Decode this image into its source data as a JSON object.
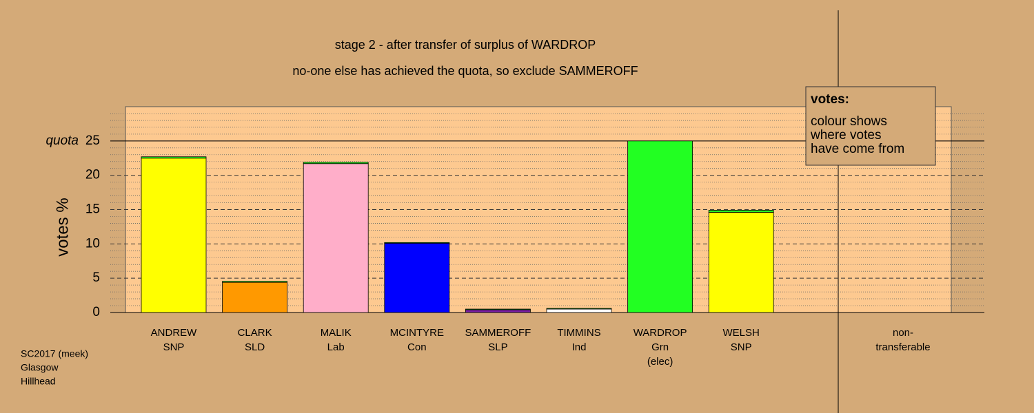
{
  "chart_data": {
    "type": "bar",
    "stacked": true,
    "title": "stage 2 - after transfer of surplus of WARDROP",
    "subtitle": "no-one else has achieved the quota, so exclude SAMMEROFF",
    "ylabel": "votes %",
    "categories": [
      [
        "ANDREW",
        "SNP"
      ],
      [
        "CLARK",
        "SLD"
      ],
      [
        "MALIK",
        "Lab"
      ],
      [
        "MCINTYRE",
        "Con"
      ],
      [
        "SAMMEROFF",
        "SLP"
      ],
      [
        "TIMMINS",
        "Ind"
      ],
      [
        "WARDROP",
        "Grn",
        "(elec)"
      ],
      [
        "WELSH",
        "SNP"
      ],
      [
        "non-",
        "transferable"
      ]
    ],
    "series": [
      {
        "colors": [
          "#ffff00",
          "#ff9900",
          "#ffaec9",
          "#0000ff",
          "#7a1fa2",
          "#ffffff",
          "#22ff22",
          "#ffff00",
          "#ffffff"
        ],
        "values": [
          22.5,
          4.4,
          21.7,
          10.1,
          0.4,
          0.5,
          25.0,
          14.6,
          0
        ]
      },
      {
        "color": "#22ff22",
        "values": [
          0.2,
          0.15,
          0.2,
          0.1,
          0.1,
          0.1,
          0,
          0.3,
          0
        ]
      }
    ],
    "ylim": [
      0,
      30
    ],
    "yticks": [
      0,
      5,
      10,
      15,
      20,
      25
    ],
    "minor_gridlines": [
      1,
      2,
      3,
      4,
      6,
      7,
      8,
      9,
      11,
      12,
      13,
      14,
      16,
      17,
      18,
      19,
      21,
      22,
      23,
      24,
      26,
      27,
      28,
      29
    ],
    "grid": true,
    "quota": {
      "label": "quota",
      "value": 25
    },
    "legend": {
      "title": "votes:",
      "lines": [
        "colour shows",
        "where votes",
        "have come from"
      ],
      "position": "top-right"
    },
    "footnote": [
      "SC2017 (meek)",
      "Glasgow",
      "Hillhead"
    ]
  }
}
